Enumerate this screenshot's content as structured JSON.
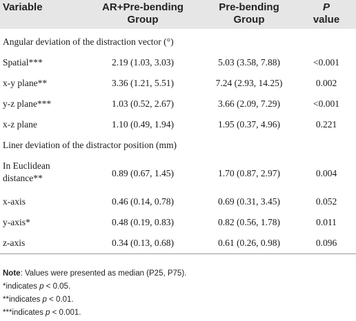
{
  "headers": {
    "variable": "Variable",
    "ar_group_line1": "AR+Pre-bending",
    "ar_group_line2": "Group",
    "pre_group_line1": "Pre-bending",
    "pre_group_line2": "Group",
    "p_line1": "P",
    "p_line2": "value"
  },
  "sections": {
    "angular": "Angular deviation of the distraction vector (°)",
    "linear": "Liner deviation of the distractor position (mm)"
  },
  "rows": [
    {
      "variable": "Spatial***",
      "ar": "2.19 (1.03, 3.03)",
      "pre": "5.03 (3.58, 7.88)",
      "p": "<0.001"
    },
    {
      "variable": "x-y plane**",
      "ar": "3.36 (1.21, 5.51)",
      "pre": "7.24 (2.93, 14.25)",
      "p": "0.002"
    },
    {
      "variable": "y-z plane***",
      "ar": "1.03 (0.52, 2.67)",
      "pre": "3.66 (2.09, 7.29)",
      "p": "<0.001"
    },
    {
      "variable": "x-z plane",
      "ar": "1.10 (0.49, 1.94)",
      "pre": "1.95 (0.37, 4.96)",
      "p": "0.221"
    },
    {
      "variable_line1": "In Euclidean",
      "variable_line2": "distance**",
      "ar": "0.89 (0.67, 1.45)",
      "pre": "1.70 (0.87, 2.97)",
      "p": "0.004"
    },
    {
      "variable": "x-axis",
      "ar": "0.46 (0.14, 0.78)",
      "pre": "0.69 (0.31, 3.45)",
      "p": "0.052"
    },
    {
      "variable": "y-axis*",
      "ar": "0.48 (0.19, 0.83)",
      "pre": "0.82 (0.56, 1.78)",
      "p": "0.011"
    },
    {
      "variable": "z-axis",
      "ar": "0.34 (0.13, 0.68)",
      "pre": "0.61 (0.26, 0.98)",
      "p": "0.096"
    }
  ],
  "notes": {
    "note_label": "Note",
    "note_text": ": Values were presented as median (P25, P75).",
    "n1_prefix": "*indicates ",
    "n2_prefix": "**indicates ",
    "n3_prefix": "***indicates ",
    "p_symbol": "p",
    "n1_suffix": " < 0.05.",
    "n2_suffix": " < 0.01.",
    "n3_suffix": " < 0.001."
  }
}
